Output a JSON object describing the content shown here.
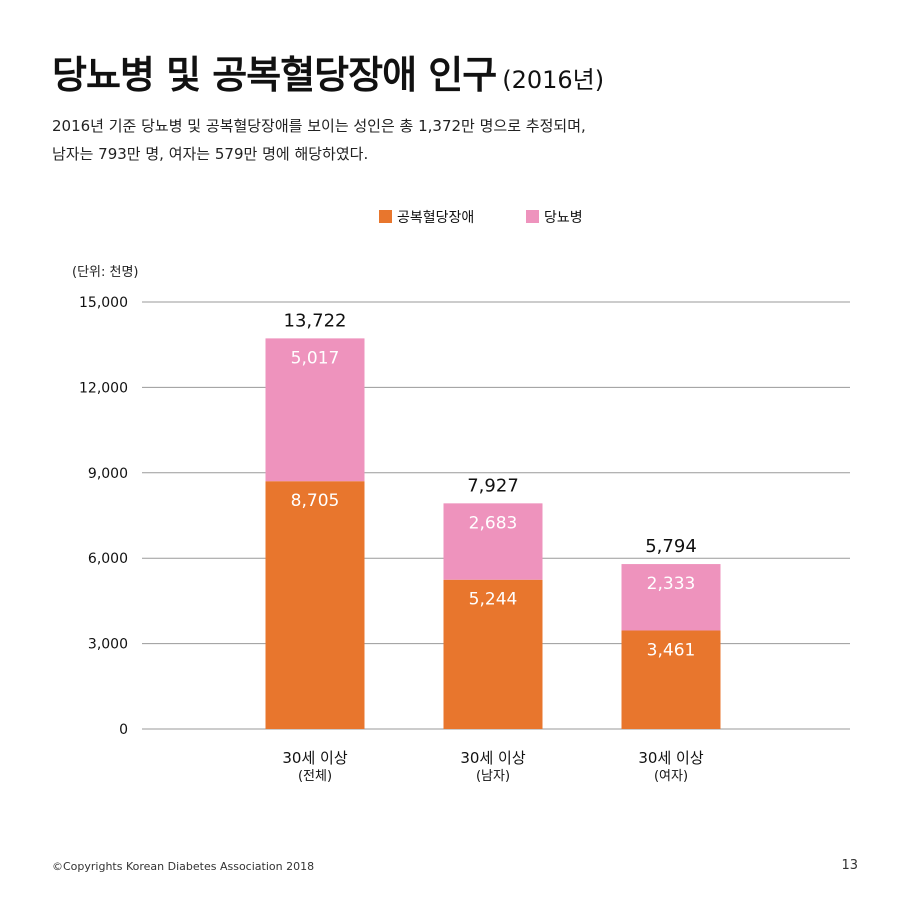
{
  "title": {
    "main": "당뇨병 및 공복혈당장애 인구",
    "year": "(2016년)"
  },
  "subtitle": {
    "line1": "2016년 기준 당뇨병 및 공복혈당장애를 보이는 성인은 총 1,372만 명으로 추정되며,",
    "line2": "남자는 793만 명, 여자는 579만 명에 해당하였다."
  },
  "colors": {
    "series1": "#e8762d",
    "series2": "#ee93bd",
    "gridline": "#9a9a9a"
  },
  "chart_data": {
    "type": "bar",
    "stacked": true,
    "unit_label": "(단위: 천명)",
    "categories": [
      {
        "line1": "30세 이상",
        "line2": "(전체)"
      },
      {
        "line1": "30세 이상",
        "line2": "(남자)"
      },
      {
        "line1": "30세 이상",
        "line2": "(여자)"
      }
    ],
    "series": [
      {
        "name": "공복혈당장애",
        "values": [
          8705,
          5244,
          3461
        ],
        "labels": [
          "8,705",
          "5,244",
          "3,461"
        ]
      },
      {
        "name": "당뇨병",
        "values": [
          5017,
          2683,
          2333
        ],
        "labels": [
          "5,017",
          "2,683",
          "2,333"
        ]
      }
    ],
    "totals": [
      13722,
      7927,
      5794
    ],
    "total_labels": [
      "13,722",
      "7,927",
      "5,794"
    ],
    "ylim": [
      0,
      15000
    ],
    "yticks": [
      0,
      3000,
      6000,
      9000,
      12000,
      15000
    ],
    "ytick_labels": [
      "0",
      "3,000",
      "6,000",
      "9,000",
      "12,000",
      "15,000"
    ],
    "grid": true,
    "legend_position": "top-center"
  },
  "footer": {
    "copyright": "©Copyrights Korean Diabetes Association 2018",
    "page": "13"
  }
}
